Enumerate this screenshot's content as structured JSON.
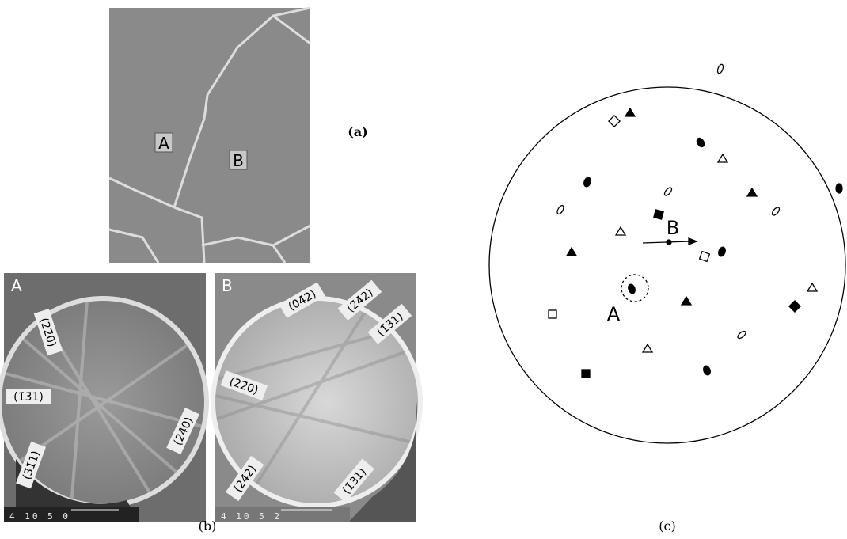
{
  "panel_a": {
    "label": "(a)",
    "grains": [
      "A",
      "B"
    ]
  },
  "panel_b": {
    "label": "(b)",
    "patterns": [
      {
        "label": "A",
        "indices": [
          "(22̄0)",
          "(1̄3̄1)",
          "(3̄1̄1)",
          "(24̄0)"
        ],
        "scale": "4 10 5 0"
      },
      {
        "label": "B",
        "indices": [
          "(04̄2)",
          "(2̄4̄2)",
          "(1̄3̄1)",
          "(22̄0)",
          "(24̄2)",
          "(1̄31)"
        ],
        "scale": "4 10 5 2"
      }
    ]
  },
  "panel_c": {
    "label": "(c)",
    "points": [
      "A",
      "B"
    ]
  }
}
